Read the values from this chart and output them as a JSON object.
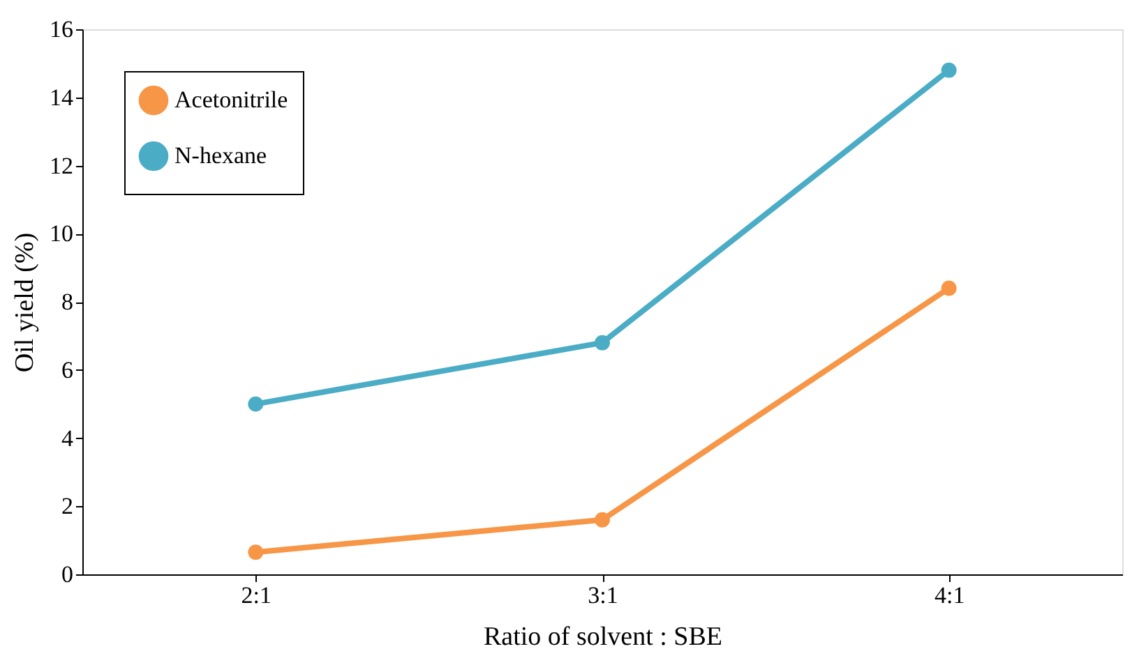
{
  "chart_data": {
    "type": "line",
    "xlabel": "Ratio of solvent : SBE",
    "ylabel": "Oil yield (%)",
    "categories": [
      "2:1",
      "3:1",
      "4:1"
    ],
    "series": [
      {
        "name": "Acetonitrile",
        "color": "#f79646",
        "values": [
          0.65,
          1.6,
          8.4
        ]
      },
      {
        "name": "N-hexane",
        "color": "#4bacc6",
        "values": [
          5.0,
          6.8,
          14.8
        ]
      }
    ],
    "ylim": [
      0,
      16
    ],
    "yticks": [
      0,
      2,
      4,
      6,
      8,
      10,
      12,
      14,
      16
    ],
    "grid": false,
    "legend": "top left",
    "marker": "circle",
    "line_style": "solid"
  }
}
